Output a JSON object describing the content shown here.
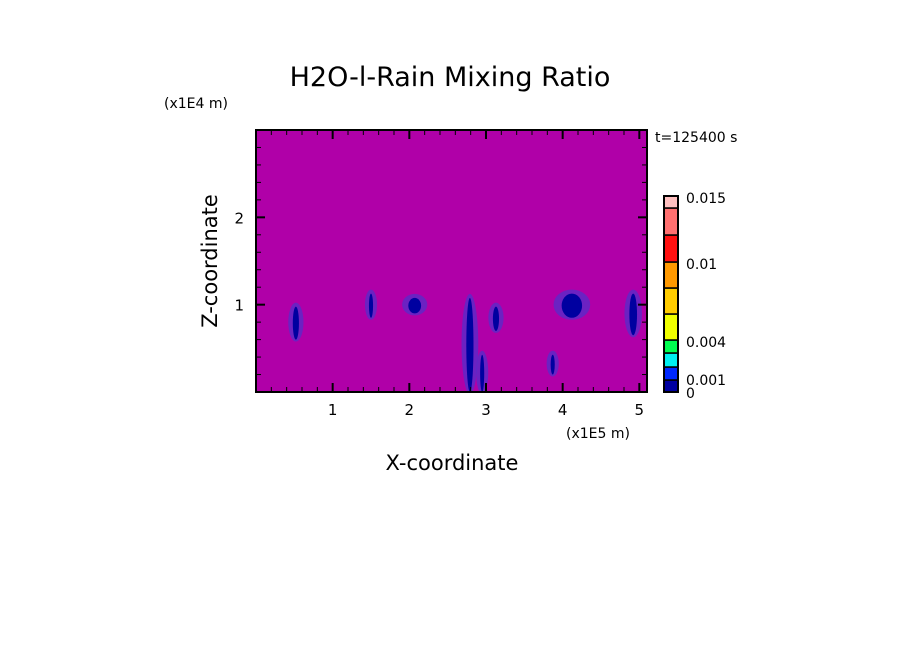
{
  "chart_data": {
    "type": "heatmap",
    "title": "H2O-l-Rain Mixing Ratio",
    "xlabel": "X-coordinate",
    "ylabel": "Z-coordinate",
    "x_unit": "(x1E5 m)",
    "y_unit": "(x1E4 m)",
    "time_label": "t=125400 s",
    "xlim": [
      0,
      5.1
    ],
    "ylim": [
      0,
      3
    ],
    "x_ticks": [
      1,
      2,
      3,
      4,
      5
    ],
    "y_ticks": [
      1,
      2
    ],
    "background_color": "#b000a8",
    "colorbar": {
      "levels": [
        0,
        0.001,
        0.002,
        0.003,
        0.004,
        0.006,
        0.008,
        0.01,
        0.012,
        0.014,
        0.015
      ],
      "colors": [
        "#0000a0",
        "#0028ff",
        "#00f0f0",
        "#00ff50",
        "#f0ff00",
        "#ffcc00",
        "#ff9900",
        "#ff1010",
        "#ff7070",
        "#ffc0c0"
      ],
      "tick_labels": [
        {
          "value": 0,
          "label": "0"
        },
        {
          "value": 0.001,
          "label": "0.001"
        },
        {
          "value": 0.004,
          "label": "0.004"
        },
        {
          "value": 0.01,
          "label": "0.01"
        },
        {
          "value": 0.015,
          "label": "0.015"
        }
      ]
    },
    "features": [
      {
        "x": 0.52,
        "z": [
          0.6,
          1.0
        ],
        "width": 0.12
      },
      {
        "x": 1.5,
        "z": [
          0.85,
          1.15
        ],
        "width": 0.08
      },
      {
        "x": 2.07,
        "z": [
          0.9,
          1.1
        ],
        "width": 0.25
      },
      {
        "x": 2.79,
        "z": [
          0.0,
          1.1
        ],
        "width": 0.14
      },
      {
        "x": 2.95,
        "z": [
          0.0,
          0.45
        ],
        "width": 0.08
      },
      {
        "x": 3.13,
        "z": [
          0.7,
          1.0
        ],
        "width": 0.12
      },
      {
        "x": 3.87,
        "z": [
          0.2,
          0.45
        ],
        "width": 0.08
      },
      {
        "x": 4.12,
        "z": [
          0.85,
          1.15
        ],
        "width": 0.4
      },
      {
        "x": 4.92,
        "z": [
          0.65,
          1.15
        ],
        "width": 0.15
      }
    ]
  }
}
